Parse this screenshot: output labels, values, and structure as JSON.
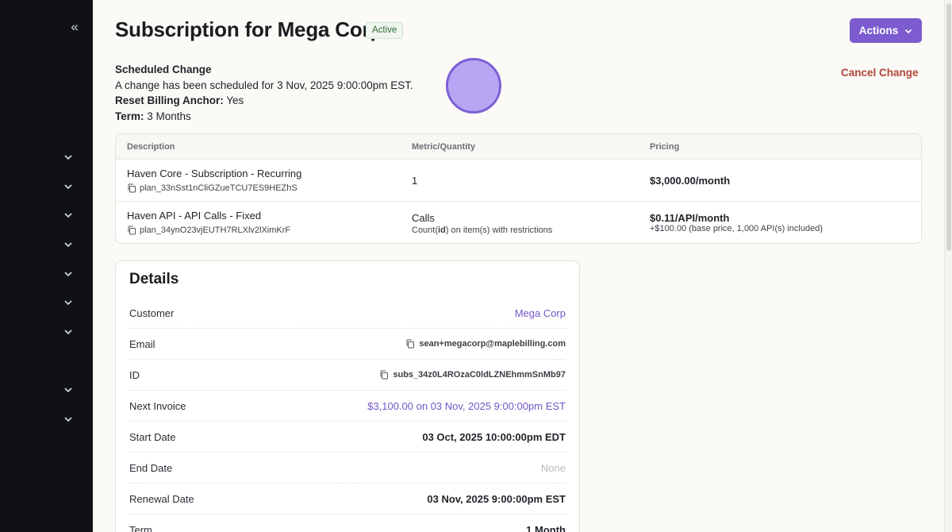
{
  "sidebar": {
    "collapse_icon": "chevrons-left-icon",
    "nav_item_icon": "chevron-down-icon"
  },
  "header": {
    "title": "Subscription for Mega Corp",
    "status": "Active",
    "actions_label": "Actions"
  },
  "scheduled_change": {
    "heading": "Scheduled Change",
    "message": "A change has been scheduled for 3 Nov, 2025 9:00:00pm EST.",
    "reset_label": "Reset Billing Anchor:",
    "reset_value": "Yes",
    "term_label": "Term:",
    "term_value": "3 Months",
    "cancel_label": "Cancel Change"
  },
  "items_table": {
    "columns": [
      "Description",
      "Metric/Quantity",
      "Pricing"
    ],
    "rows": [
      {
        "name": "Haven Core - Subscription - Recurring",
        "plan_id": "plan_33nSst1nCliGZueTCU7ES9HEZhS",
        "metric": "1",
        "pricing": "$3,000.00/month"
      },
      {
        "name": "Haven API - API Calls - Fixed",
        "plan_id": "plan_34ynO23vjEUTH7RLXlv2lXimKrF",
        "metric": "Calls",
        "metric_sub_prefix": "Count(",
        "metric_sub_key": "id",
        "metric_sub_suffix": ") on item(s) with restrictions",
        "pricing": "$0.11/API/month",
        "pricing_sub": "+$100.00 (base price, 1,000 API(s) included)"
      }
    ]
  },
  "details": {
    "title": "Details",
    "rows": [
      {
        "label": "Customer",
        "value": "Mega Corp"
      },
      {
        "label": "Email",
        "value": "sean+megacorp@maplebilling.com"
      },
      {
        "label": "ID",
        "value": "subs_34z0L4ROzaC0ldLZNEhmmSnMb97"
      },
      {
        "label": "Next Invoice",
        "value": "$3,100.00 on 03 Nov, 2025 9:00:00pm EST"
      },
      {
        "label": "Start Date",
        "value": "03 Oct, 2025 10:00:00pm EDT"
      },
      {
        "label": "End Date",
        "value": "None"
      },
      {
        "label": "Renewal Date",
        "value": "03 Nov, 2025 9:00:00pm EST"
      },
      {
        "label": "Term",
        "value": "1 Month"
      }
    ]
  },
  "colors": {
    "sidebar_bg": "#0f1115",
    "accent": "#7c5ccf",
    "cancel": "#b0463a",
    "status_green": "#2f6b3a",
    "link": "#7356c6"
  }
}
